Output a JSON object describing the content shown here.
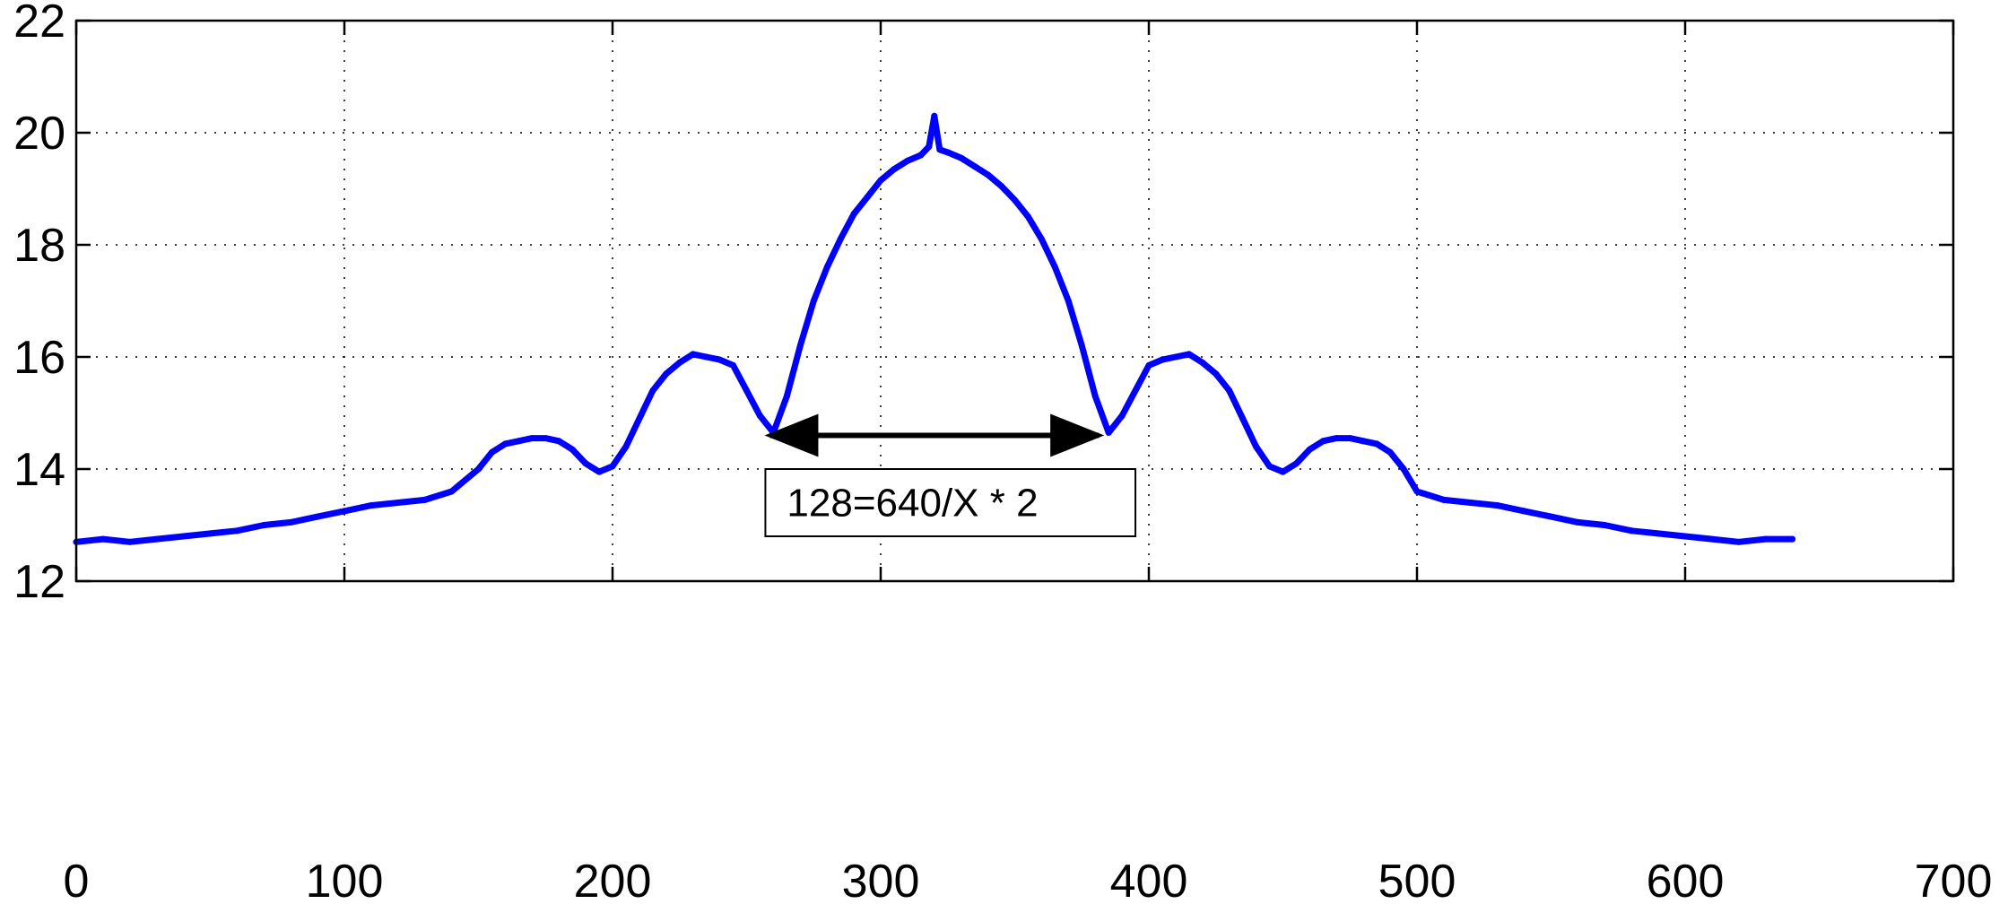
{
  "chart_data": {
    "type": "line",
    "title": "",
    "xlabel": "",
    "ylabel": "",
    "xlim": [
      0,
      700
    ],
    "ylim": [
      12,
      22
    ],
    "xticks": [
      0,
      100,
      200,
      300,
      400,
      500,
      600,
      700
    ],
    "yticks": [
      12,
      14,
      16,
      18,
      20,
      22
    ],
    "xtick_labels": [
      "0",
      "100",
      "200",
      "300",
      "400",
      "500",
      "600",
      "700"
    ],
    "ytick_labels": [
      "12",
      "14",
      "16",
      "18",
      "20",
      "22"
    ],
    "grid": true,
    "grid_style": "dotted",
    "legend": "none",
    "series": [
      {
        "color": "#0000ff",
        "x": [
          0,
          10,
          20,
          30,
          40,
          50,
          60,
          70,
          80,
          90,
          100,
          110,
          120,
          130,
          140,
          150,
          155,
          160,
          165,
          170,
          175,
          180,
          185,
          190,
          195,
          200,
          205,
          210,
          215,
          220,
          225,
          230,
          235,
          240,
          245,
          250,
          255,
          260,
          265,
          270,
          275,
          280,
          285,
          290,
          295,
          300,
          305,
          310,
          315,
          318,
          320,
          322,
          325,
          330,
          335,
          340,
          345,
          350,
          355,
          360,
          365,
          370,
          375,
          380,
          385,
          390,
          395,
          400,
          405,
          410,
          415,
          420,
          425,
          430,
          435,
          440,
          445,
          450,
          455,
          460,
          465,
          470,
          475,
          480,
          485,
          490,
          495,
          500,
          510,
          520,
          530,
          540,
          550,
          560,
          570,
          580,
          590,
          600,
          610,
          620,
          630,
          640
        ],
        "y": [
          12.7,
          12.75,
          12.7,
          12.75,
          12.8,
          12.85,
          12.9,
          13.0,
          13.05,
          13.15,
          13.25,
          13.35,
          13.4,
          13.45,
          13.6,
          14.0,
          14.3,
          14.45,
          14.5,
          14.55,
          14.55,
          14.5,
          14.35,
          14.1,
          13.95,
          14.05,
          14.4,
          14.9,
          15.4,
          15.7,
          15.9,
          16.05,
          16.0,
          15.95,
          15.85,
          15.4,
          14.95,
          14.65,
          15.3,
          16.2,
          17.0,
          17.6,
          18.1,
          18.55,
          18.85,
          19.15,
          19.35,
          19.5,
          19.6,
          19.75,
          20.3,
          19.7,
          19.65,
          19.55,
          19.4,
          19.25,
          19.05,
          18.8,
          18.5,
          18.1,
          17.6,
          17.0,
          16.2,
          15.3,
          14.65,
          14.95,
          15.4,
          15.85,
          15.95,
          16.0,
          16.05,
          15.9,
          15.7,
          15.4,
          14.9,
          14.4,
          14.05,
          13.95,
          14.1,
          14.35,
          14.5,
          14.55,
          14.55,
          14.5,
          14.45,
          14.3,
          14.0,
          13.6,
          13.45,
          13.4,
          13.35,
          13.25,
          13.15,
          13.05,
          13.0,
          12.9,
          12.85,
          12.8,
          12.75,
          12.7,
          12.75,
          12.75
        ]
      }
    ],
    "annotations": [
      {
        "type": "double-arrow",
        "x_start": 256,
        "x_end": 384,
        "y": 14.6
      },
      {
        "type": "text-box",
        "text": "128=640/X * 2",
        "x_left": 257,
        "x_right": 395,
        "y_top": 14.0,
        "y_bottom": 12.8
      }
    ]
  }
}
